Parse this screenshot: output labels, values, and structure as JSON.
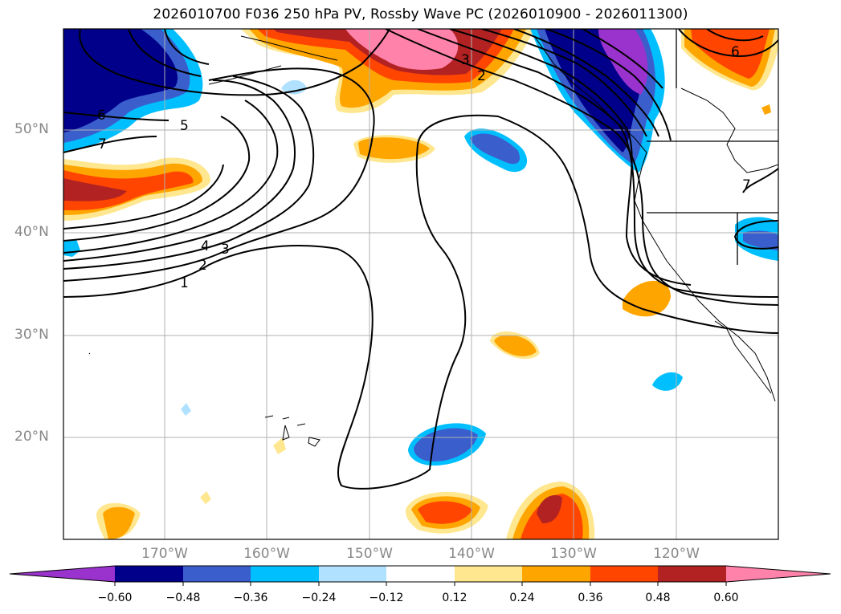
{
  "title": "2026010700 F036 250 hPa PV, Rossby Wave PC (2026010900 - 2026011300)",
  "map": {
    "lat_labels": [
      "50°N",
      "40°N",
      "30°N",
      "20°N"
    ],
    "lon_labels": [
      "170°W",
      "160°W",
      "150°W",
      "140°W",
      "130°W",
      "120°W"
    ],
    "contour_labels": [
      "6",
      "7",
      "5",
      "4",
      "3",
      "2",
      "1",
      "3",
      "2",
      "6",
      "7"
    ]
  },
  "colorbar": {
    "ticks": [
      "−0.60",
      "−0.48",
      "−0.36",
      "−0.24",
      "−0.12",
      "0.12",
      "0.24",
      "0.36",
      "0.48",
      "0.60"
    ],
    "colors": [
      "#9a32cd",
      "#00008b",
      "#3a5fcd",
      "#00bfff",
      "#b0e2ff",
      "#ffffff",
      "#ffe78f",
      "#ffa500",
      "#ff4500",
      "#b22222",
      "#ff82ab"
    ]
  },
  "colors": {
    "frame": "#000000",
    "grid": "#b0b0b0",
    "contour": "#000000",
    "tick_text": "#888888"
  }
}
